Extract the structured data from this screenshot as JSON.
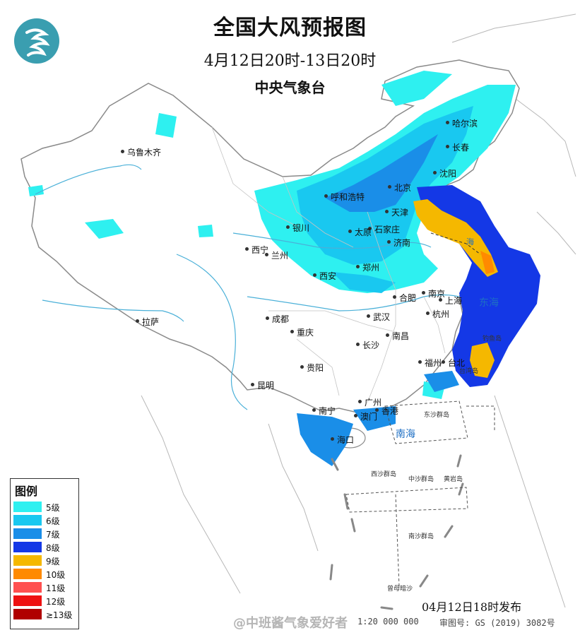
{
  "header": {
    "title": "全国大风预报图",
    "period": "4月12日20时-13日20时",
    "agency": "中央气象台"
  },
  "legend": {
    "title": "图例",
    "items": [
      {
        "label": "5级",
        "color": "#2ef0f0"
      },
      {
        "label": "6级",
        "color": "#19c8f0"
      },
      {
        "label": "7级",
        "color": "#1a8ee8"
      },
      {
        "label": "8级",
        "color": "#1438e6"
      },
      {
        "label": "9级",
        "color": "#f5b800"
      },
      {
        "label": "10级",
        "color": "#ff8a00"
      },
      {
        "label": "11级",
        "color": "#ff5050"
      },
      {
        "label": "12级",
        "color": "#ee1111"
      },
      {
        "label": "≥13级",
        "color": "#b00000"
      }
    ]
  },
  "cities": [
    {
      "name": "哈尔滨"
    },
    {
      "name": "长春"
    },
    {
      "name": "沈阳"
    },
    {
      "name": "乌鲁木齐"
    },
    {
      "name": "呼和浩特"
    },
    {
      "name": "北京"
    },
    {
      "name": "天津"
    },
    {
      "name": "石家庄"
    },
    {
      "name": "太原"
    },
    {
      "name": "济南"
    },
    {
      "name": "银川"
    },
    {
      "name": "西宁"
    },
    {
      "name": "兰州"
    },
    {
      "name": "郑州"
    },
    {
      "name": "西安"
    },
    {
      "name": "合肥"
    },
    {
      "name": "南京"
    },
    {
      "name": "上海"
    },
    {
      "name": "杭州"
    },
    {
      "name": "武汉"
    },
    {
      "name": "成都"
    },
    {
      "name": "拉萨"
    },
    {
      "name": "重庆"
    },
    {
      "name": "南昌"
    },
    {
      "name": "长沙"
    },
    {
      "name": "贵阳"
    },
    {
      "name": "福州"
    },
    {
      "name": "台北"
    },
    {
      "name": "昆明"
    },
    {
      "name": "广州"
    },
    {
      "name": "南宁"
    },
    {
      "name": "澳门"
    },
    {
      "name": "香港"
    },
    {
      "name": "海口"
    },
    {
      "name": "台湾岛"
    }
  ],
  "seas": {
    "east_sea": "东海",
    "south_sea": "南海",
    "bohai": "海"
  },
  "islands": {
    "dongsha": "东沙群岛",
    "xisha": "西沙群岛",
    "zhongsha": "中沙群岛",
    "huangyan": "黄岩岛",
    "nansha": "南沙群岛",
    "zengmu": "曾母暗沙",
    "diaoyu": "钓鱼岛"
  },
  "footer": {
    "issued": "04月12日18时发布",
    "scale": "1:20 000 000",
    "review_no": "审图号: GS (2019) 3082号",
    "watermark": "@中班酱气象爱好者"
  }
}
